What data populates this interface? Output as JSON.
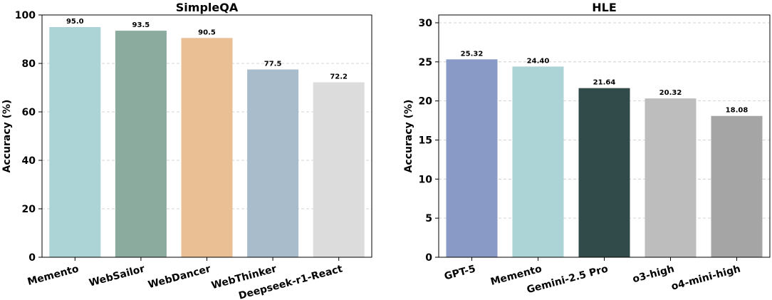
{
  "chart_data": [
    {
      "type": "bar",
      "title": "SimpleQA",
      "ylabel": "Accuracy (%)",
      "ylim": [
        0,
        100
      ],
      "yticks": [
        0,
        20,
        40,
        60,
        80,
        100
      ],
      "grid": true,
      "categories": [
        "Memento",
        "WebSailor",
        "WebDancer",
        "WebThinker",
        "Deepseek-r1-React"
      ],
      "values": [
        95.0,
        93.5,
        90.5,
        77.5,
        72.2
      ],
      "value_labels": [
        "95.0",
        "93.5",
        "90.5",
        "77.5",
        "72.2"
      ],
      "colors": [
        "#acd3d5",
        "#8aab9e",
        "#ebbf94",
        "#a9bccc",
        "#dcdcdc"
      ]
    },
    {
      "type": "bar",
      "title": "HLE",
      "ylabel": "Accuracy (%)",
      "ylim": [
        0,
        31
      ],
      "yticks": [
        0,
        5,
        10,
        15,
        20,
        25,
        30
      ],
      "grid": true,
      "categories": [
        "GPT-5",
        "Memento",
        "Gemini-2.5 Pro",
        "o3-high",
        "o4-mini-high"
      ],
      "values": [
        25.32,
        24.4,
        21.64,
        20.32,
        18.08
      ],
      "value_labels": [
        "25.32",
        "24.40",
        "21.64",
        "20.32",
        "18.08"
      ],
      "colors": [
        "#8a9ac6",
        "#acd3d5",
        "#314b4a",
        "#bdbdbd",
        "#a5a5a5"
      ]
    }
  ]
}
